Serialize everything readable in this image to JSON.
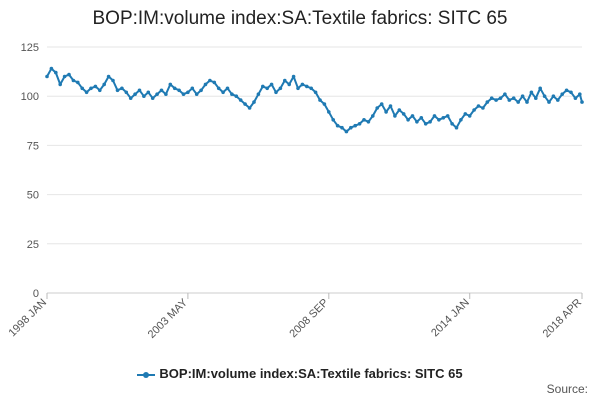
{
  "chart_data": {
    "type": "line",
    "title": "BOP:IM:volume index:SA:Textile fabrics: SITC 65",
    "xlabel": "",
    "ylabel": "",
    "ylim": [
      0,
      125
    ],
    "yticks": [
      0,
      25,
      50,
      75,
      100,
      125
    ],
    "grid": true,
    "legend_position": "bottom-center",
    "x_tick_labels": [
      {
        "label": "1998 JAN",
        "index": 0
      },
      {
        "label": "2003 MAY",
        "index": 64
      },
      {
        "label": "2008 SEP",
        "index": 128
      },
      {
        "label": "2014 JAN",
        "index": 192
      },
      {
        "label": "2018 APR",
        "index": 243
      }
    ],
    "x_count": 244,
    "series": [
      {
        "name": "BOP:IM:volume index:SA:Textile fabrics: SITC 65",
        "color": "#1f7ab3",
        "points": [
          [
            0,
            110
          ],
          [
            2,
            114
          ],
          [
            4,
            112
          ],
          [
            6,
            106
          ],
          [
            8,
            110
          ],
          [
            10,
            111
          ],
          [
            12,
            108
          ],
          [
            14,
            107
          ],
          [
            16,
            104
          ],
          [
            18,
            102
          ],
          [
            20,
            104
          ],
          [
            22,
            105
          ],
          [
            24,
            103
          ],
          [
            26,
            106
          ],
          [
            28,
            110
          ],
          [
            30,
            108
          ],
          [
            32,
            103
          ],
          [
            34,
            104
          ],
          [
            36,
            102
          ],
          [
            38,
            99
          ],
          [
            40,
            101
          ],
          [
            42,
            103
          ],
          [
            44,
            100
          ],
          [
            46,
            102
          ],
          [
            48,
            99
          ],
          [
            50,
            101
          ],
          [
            52,
            103
          ],
          [
            54,
            101
          ],
          [
            56,
            106
          ],
          [
            58,
            104
          ],
          [
            60,
            103
          ],
          [
            62,
            101
          ],
          [
            64,
            102
          ],
          [
            66,
            104
          ],
          [
            68,
            101
          ],
          [
            70,
            103
          ],
          [
            72,
            106
          ],
          [
            74,
            108
          ],
          [
            76,
            107
          ],
          [
            78,
            104
          ],
          [
            80,
            102
          ],
          [
            82,
            104
          ],
          [
            84,
            101
          ],
          [
            86,
            100
          ],
          [
            88,
            98
          ],
          [
            90,
            96
          ],
          [
            92,
            94
          ],
          [
            94,
            97
          ],
          [
            96,
            101
          ],
          [
            98,
            105
          ],
          [
            100,
            104
          ],
          [
            102,
            106
          ],
          [
            104,
            102
          ],
          [
            106,
            104
          ],
          [
            108,
            108
          ],
          [
            110,
            106
          ],
          [
            112,
            110
          ],
          [
            114,
            104
          ],
          [
            116,
            106
          ],
          [
            118,
            105
          ],
          [
            120,
            104
          ],
          [
            122,
            102
          ],
          [
            124,
            98
          ],
          [
            126,
            96
          ],
          [
            128,
            92
          ],
          [
            130,
            88
          ],
          [
            132,
            85
          ],
          [
            134,
            84
          ],
          [
            136,
            82
          ],
          [
            138,
            84
          ],
          [
            140,
            85
          ],
          [
            142,
            86
          ],
          [
            144,
            88
          ],
          [
            146,
            87
          ],
          [
            148,
            90
          ],
          [
            150,
            94
          ],
          [
            152,
            96
          ],
          [
            154,
            92
          ],
          [
            156,
            95
          ],
          [
            158,
            90
          ],
          [
            160,
            93
          ],
          [
            162,
            91
          ],
          [
            164,
            88
          ],
          [
            166,
            90
          ],
          [
            168,
            87
          ],
          [
            170,
            89
          ],
          [
            172,
            86
          ],
          [
            174,
            87
          ],
          [
            176,
            90
          ],
          [
            178,
            88
          ],
          [
            180,
            89
          ],
          [
            182,
            90
          ],
          [
            184,
            86
          ],
          [
            186,
            84
          ],
          [
            188,
            88
          ],
          [
            190,
            91
          ],
          [
            192,
            90
          ],
          [
            194,
            93
          ],
          [
            196,
            95
          ],
          [
            198,
            94
          ],
          [
            200,
            97
          ],
          [
            202,
            99
          ],
          [
            204,
            98
          ],
          [
            206,
            99
          ],
          [
            208,
            101
          ],
          [
            210,
            98
          ],
          [
            212,
            99
          ],
          [
            214,
            97
          ],
          [
            216,
            100
          ],
          [
            218,
            97
          ],
          [
            220,
            102
          ],
          [
            222,
            99
          ],
          [
            224,
            104
          ],
          [
            226,
            100
          ],
          [
            228,
            97
          ],
          [
            230,
            100
          ],
          [
            232,
            98
          ],
          [
            234,
            101
          ],
          [
            236,
            103
          ],
          [
            238,
            102
          ],
          [
            240,
            99
          ],
          [
            242,
            101
          ],
          [
            243,
            97
          ]
        ]
      }
    ],
    "source_label": "Source:"
  }
}
